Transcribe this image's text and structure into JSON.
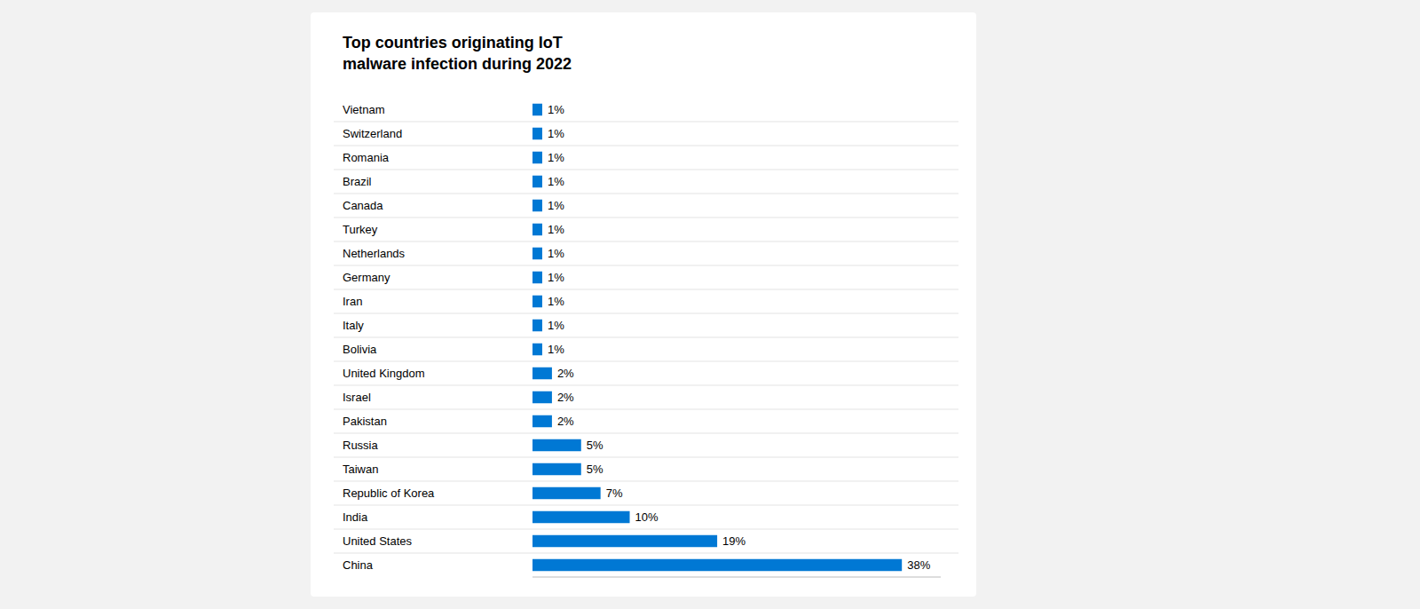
{
  "chart_data": {
    "type": "bar",
    "orientation": "horizontal",
    "title": "Top countries originating IoT\nmalware infection during 2022",
    "categories": [
      "Vietnam",
      "Switzerland",
      "Romania",
      "Brazil",
      "Canada",
      "Turkey",
      "Netherlands",
      "Germany",
      "Iran",
      "Italy",
      "Bolivia",
      "United Kingdom",
      "Israel",
      "Pakistan",
      "Russia",
      "Taiwan",
      "Republic of Korea",
      "India",
      "United States",
      "China"
    ],
    "values": [
      1,
      1,
      1,
      1,
      1,
      1,
      1,
      1,
      1,
      1,
      1,
      2,
      2,
      2,
      5,
      5,
      7,
      10,
      19,
      38
    ],
    "value_labels": [
      "1%",
      "1%",
      "1%",
      "1%",
      "1%",
      "1%",
      "1%",
      "1%",
      "1%",
      "1%",
      "1%",
      "2%",
      "2%",
      "2%",
      "5%",
      "5%",
      "7%",
      "10%",
      "19%",
      "38%"
    ],
    "data_labels": true,
    "tick_labels": false,
    "color": "#0078d4",
    "xlim": [
      0,
      42
    ]
  }
}
